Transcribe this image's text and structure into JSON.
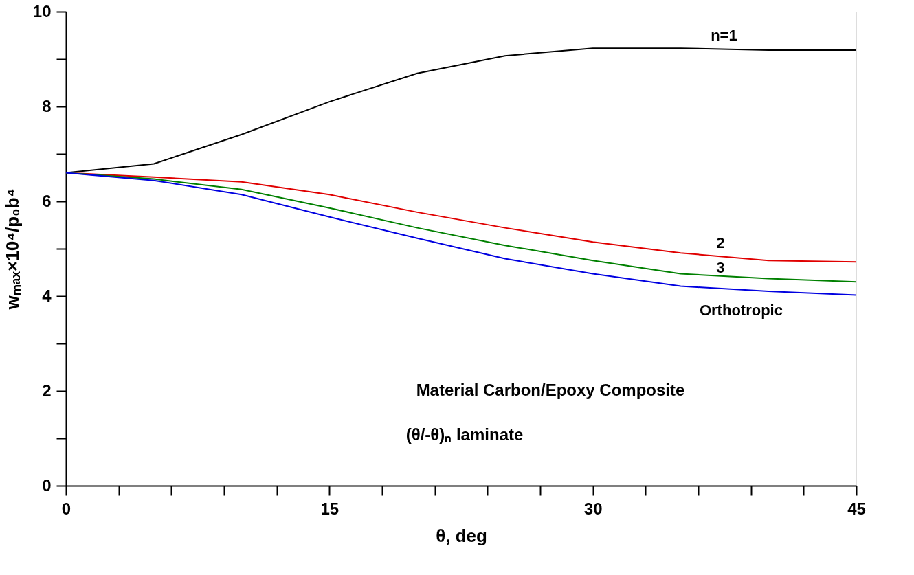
{
  "chart_data": {
    "type": "line",
    "xlabel": "θ, deg",
    "ylabel": "wₘₐₓ×10⁴/p₀b⁴",
    "x": [
      0,
      5,
      10,
      15,
      20,
      25,
      30,
      35,
      40,
      45
    ],
    "series": [
      {
        "name": "n=1",
        "color": "#000000",
        "values": [
          6.6,
          6.79,
          7.41,
          8.1,
          8.7,
          9.07,
          9.23,
          9.23,
          9.19,
          9.19
        ]
      },
      {
        "name": "2",
        "color": "#e00000",
        "values": [
          6.6,
          6.51,
          6.41,
          6.14,
          5.77,
          5.44,
          5.14,
          4.91,
          4.75,
          4.72
        ]
      },
      {
        "name": "3",
        "color": "#008000",
        "values": [
          6.6,
          6.47,
          6.25,
          5.86,
          5.44,
          5.07,
          4.75,
          4.47,
          4.37,
          4.3
        ]
      },
      {
        "name": "Orthotropic",
        "color": "#0000e0",
        "values": [
          6.6,
          6.44,
          6.14,
          5.67,
          5.22,
          4.79,
          4.47,
          4.21,
          4.1,
          4.02
        ]
      }
    ],
    "xlim": [
      0,
      45
    ],
    "ylim": [
      0,
      10
    ],
    "xticks": [
      0,
      {
        "value": 3,
        "label": null
      },
      {
        "value": 6,
        "label": null
      },
      {
        "value": 9,
        "label": null
      },
      {
        "value": 12,
        "label": null
      },
      15,
      {
        "value": 18,
        "label": null
      },
      {
        "value": 21,
        "label": null
      },
      {
        "value": 24,
        "label": null
      },
      {
        "value": 27,
        "label": null
      },
      30,
      {
        "value": 33,
        "label": null
      },
      {
        "value": 36,
        "label": null
      },
      {
        "value": 39,
        "label": null
      },
      {
        "value": 42,
        "label": null
      },
      45
    ],
    "yticks": [
      0,
      {
        "value": 1,
        "label": null
      },
      2,
      {
        "value": 3,
        "label": null
      },
      4,
      {
        "value": 5,
        "label": null
      },
      6,
      {
        "value": 7,
        "label": null
      },
      8,
      {
        "value": 9,
        "label": null
      },
      10
    ],
    "annotations": [
      "Material Carbon/Epoxy Composite",
      "(θ/-θ)ₙ laminate"
    ],
    "grid": false,
    "marker": "none",
    "line_style": "solid"
  }
}
